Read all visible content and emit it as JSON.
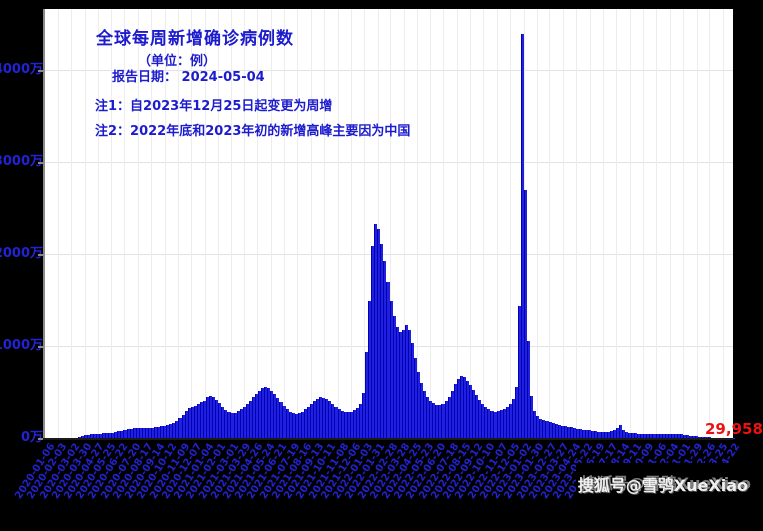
{
  "title": "全球每周新增确诊病例数",
  "subtitle": "（单位：例）",
  "report_date": "报告日期：  2024-05-04",
  "note1": "注1：自2023年12月25日起变更为周增",
  "note2": "注2：2022年底和2023年初的新增高峰主要因为中国",
  "last_value_label": "29,958",
  "watermark": "搜狐号@雪鸮XueXiao",
  "colors": {
    "figure_background": "#000000",
    "plot_background": "#ffffff",
    "bar": "#2121dd",
    "annotation_text": "#1c1cce",
    "tick_text": "#2222cf",
    "last_value_text": "#ee1111",
    "watermark_text": "#efefef",
    "gridline": "#ededed"
  },
  "chart_data": {
    "type": "bar",
    "title": "全球每周新增确诊病例数",
    "unit": "例 (values below in 万 = 10,000 cases)",
    "start_date": "2020-01-06",
    "interval_days": 7,
    "x_tick_every_n_weeks": 4,
    "grid": "on",
    "ylabel_ticks": [
      "0万",
      "1000万",
      "2000万",
      "3000万",
      "4000万"
    ],
    "ylim_wan": [
      0,
      4700
    ],
    "values_wan": [
      1,
      1,
      2,
      2,
      3,
      4,
      5,
      6,
      9,
      14,
      22,
      32,
      42,
      48,
      52,
      55,
      57,
      59,
      61,
      64,
      67,
      71,
      76,
      83,
      91,
      99,
      106,
      112,
      117,
      121,
      123,
      122,
      120,
      120,
      122,
      126,
      131,
      137,
      144,
      152,
      163,
      178,
      200,
      228,
      262,
      300,
      332,
      352,
      362,
      377,
      397,
      418,
      452,
      468,
      458,
      428,
      388,
      348,
      314,
      290,
      278,
      286,
      302,
      322,
      347,
      377,
      412,
      452,
      492,
      527,
      552,
      562,
      550,
      524,
      488,
      444,
      399,
      359,
      324,
      298,
      280,
      272,
      279,
      296,
      321,
      351,
      383,
      413,
      439,
      453,
      449,
      433,
      409,
      379,
      349,
      323,
      306,
      296,
      293,
      299,
      312,
      340,
      380,
      500,
      950,
      1500,
      2100,
      2330,
      2280,
      2120,
      1930,
      1700,
      1500,
      1340,
      1220,
      1160,
      1180,
      1240,
      1180,
      1040,
      880,
      730,
      610,
      520,
      455,
      415,
      390,
      372,
      368,
      380,
      408,
      455,
      520,
      595,
      655,
      690,
      672,
      635,
      585,
      530,
      475,
      425,
      382,
      348,
      322,
      305,
      298,
      300,
      310,
      328,
      352,
      385,
      430,
      560,
      1450,
      4400,
      2700,
      1070,
      470,
      300,
      245,
      222,
      205,
      192,
      180,
      170,
      161,
      153,
      146,
      139,
      132,
      126,
      120,
      114,
      108,
      103,
      98,
      93,
      89,
      85,
      81,
      78,
      76,
      80,
      90,
      100,
      120,
      150,
      95,
      78,
      70,
      65,
      62,
      60,
      58,
      57,
      56,
      55,
      55,
      54,
      54,
      55,
      56,
      58,
      60,
      59,
      55,
      50,
      46,
      42,
      38,
      34,
      30,
      27,
      24,
      21,
      18,
      15,
      12,
      10,
      8,
      7,
      6,
      5,
      3
    ]
  }
}
